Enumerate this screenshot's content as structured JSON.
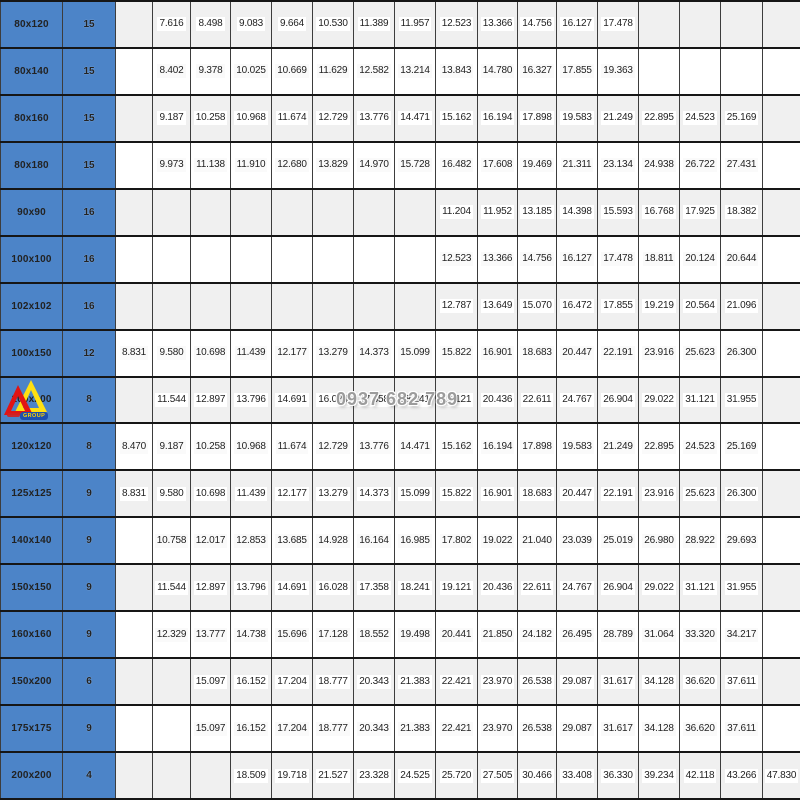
{
  "watermark": {
    "text": "0937 682 789"
  },
  "logo": {
    "badge_label": "GROUP"
  },
  "colors": {
    "header_blue": "#4c84c8",
    "header_separator_blue": "#2c5ea6",
    "row_shade_gray": "#f0f0f0",
    "grid_line": "#161616",
    "dimension_text": "#13233f",
    "count_text": "#ffffff",
    "watermark_gray": "#9c9c9c",
    "logo_yellow": "#ffe012",
    "logo_red": "#e11414",
    "logo_badge_blue": "#1d4fae"
  },
  "table": {
    "rows": [
      {
        "size": "80x120",
        "count": "15",
        "values": [
          "",
          "7.616",
          "8.498",
          "9.083",
          "9.664",
          "10.530",
          "11.389",
          "11.957",
          "12.523",
          "13.366",
          "14.756",
          "16.127",
          "17.478",
          "",
          "",
          "",
          ""
        ]
      },
      {
        "size": "80x140",
        "count": "15",
        "values": [
          "",
          "8.402",
          "9.378",
          "10.025",
          "10.669",
          "11.629",
          "12.582",
          "13.214",
          "13.843",
          "14.780",
          "16.327",
          "17.855",
          "19.363",
          "",
          "",
          "",
          ""
        ]
      },
      {
        "size": "80x160",
        "count": "15",
        "values": [
          "",
          "9.187",
          "10.258",
          "10.968",
          "11.674",
          "12.729",
          "13.776",
          "14.471",
          "15.162",
          "16.194",
          "17.898",
          "19.583",
          "21.249",
          "22.895",
          "24.523",
          "25.169",
          ""
        ]
      },
      {
        "size": "80x180",
        "count": "15",
        "values": [
          "",
          "9.973",
          "11.138",
          "11.910",
          "12.680",
          "13.829",
          "14.970",
          "15.728",
          "16.482",
          "17.608",
          "19.469",
          "21.311",
          "23.134",
          "24.938",
          "26.722",
          "27.431",
          ""
        ]
      },
      {
        "size": "90x90",
        "count": "16",
        "values": [
          "",
          "",
          "",
          "",
          "",
          "",
          "",
          "",
          "11.204",
          "11.952",
          "13.185",
          "14.398",
          "15.593",
          "16.768",
          "17.925",
          "18.382",
          ""
        ]
      },
      {
        "size": "100x100",
        "count": "16",
        "values": [
          "",
          "",
          "",
          "",
          "",
          "",
          "",
          "",
          "12.523",
          "13.366",
          "14.756",
          "16.127",
          "17.478",
          "18.811",
          "20.124",
          "20.644",
          ""
        ]
      },
      {
        "size": "102x102",
        "count": "16",
        "values": [
          "",
          "",
          "",
          "",
          "",
          "",
          "",
          "",
          "12.787",
          "13.649",
          "15.070",
          "16.472",
          "17.855",
          "19.219",
          "20.564",
          "21.096",
          ""
        ]
      },
      {
        "size": "100x150",
        "count": "12",
        "values": [
          "8.831",
          "9.580",
          "10.698",
          "11.439",
          "12.177",
          "13.279",
          "14.373",
          "15.099",
          "15.822",
          "16.901",
          "18.683",
          "20.447",
          "22.191",
          "23.916",
          "25.623",
          "26.300",
          ""
        ]
      },
      {
        "size": "100x200",
        "count": "8",
        "values": [
          "",
          "11.544",
          "12.897",
          "13.796",
          "14.691",
          "16.028",
          "17.358",
          "18.241",
          "19.121",
          "20.436",
          "22.611",
          "24.767",
          "26.904",
          "29.022",
          "31.121",
          "31.955",
          ""
        ]
      },
      {
        "size": "120x120",
        "count": "8",
        "values": [
          "8.470",
          "9.187",
          "10.258",
          "10.968",
          "11.674",
          "12.729",
          "13.776",
          "14.471",
          "15.162",
          "16.194",
          "17.898",
          "19.583",
          "21.249",
          "22.895",
          "24.523",
          "25.169",
          ""
        ]
      },
      {
        "size": "125x125",
        "count": "9",
        "values": [
          "8.831",
          "9.580",
          "10.698",
          "11.439",
          "12.177",
          "13.279",
          "14.373",
          "15.099",
          "15.822",
          "16.901",
          "18.683",
          "20.447",
          "22.191",
          "23.916",
          "25.623",
          "26.300",
          ""
        ]
      },
      {
        "size": "140x140",
        "count": "9",
        "values": [
          "",
          "10.758",
          "12.017",
          "12.853",
          "13.685",
          "14.928",
          "16.164",
          "16.985",
          "17.802",
          "19.022",
          "21.040",
          "23.039",
          "25.019",
          "26.980",
          "28.922",
          "29.693",
          ""
        ]
      },
      {
        "size": "150x150",
        "count": "9",
        "values": [
          "",
          "11.544",
          "12.897",
          "13.796",
          "14.691",
          "16.028",
          "17.358",
          "18.241",
          "19.121",
          "20.436",
          "22.611",
          "24.767",
          "26.904",
          "29.022",
          "31.121",
          "31.955",
          ""
        ]
      },
      {
        "size": "160x160",
        "count": "9",
        "values": [
          "",
          "12.329",
          "13.777",
          "14.738",
          "15.696",
          "17.128",
          "18.552",
          "19.498",
          "20.441",
          "21.850",
          "24.182",
          "26.495",
          "28.789",
          "31.064",
          "33.320",
          "34.217",
          ""
        ]
      },
      {
        "size": "150x200",
        "count": "6",
        "values": [
          "",
          "",
          "15.097",
          "16.152",
          "17.204",
          "18.777",
          "20.343",
          "21.383",
          "22.421",
          "23.970",
          "26.538",
          "29.087",
          "31.617",
          "34.128",
          "36.620",
          "37.611",
          ""
        ]
      },
      {
        "size": "175x175",
        "count": "9",
        "values": [
          "",
          "",
          "15.097",
          "16.152",
          "17.204",
          "18.777",
          "20.343",
          "21.383",
          "22.421",
          "23.970",
          "26.538",
          "29.087",
          "31.617",
          "34.128",
          "36.620",
          "37.611",
          ""
        ]
      },
      {
        "size": "200x200",
        "count": "4",
        "values": [
          "",
          "",
          "",
          "18.509",
          "19.718",
          "21.527",
          "23.328",
          "24.525",
          "25.720",
          "27.505",
          "30.466",
          "33.408",
          "36.330",
          "39.234",
          "42.118",
          "43.266",
          "47.830"
        ]
      }
    ]
  }
}
